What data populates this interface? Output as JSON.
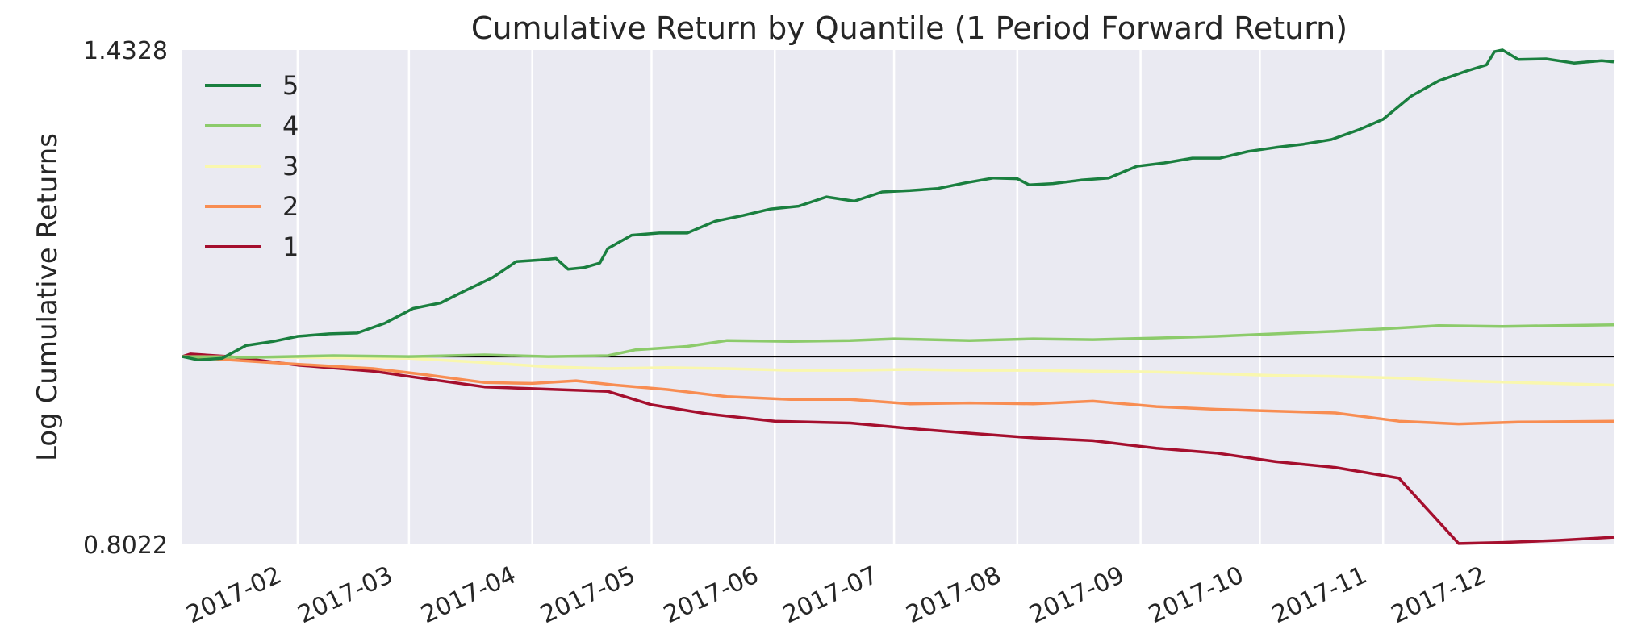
{
  "chart_data": {
    "type": "line",
    "title": "Cumulative Return by Quantile (1 Period Forward Return)",
    "ylabel": "Log Cumulative Returns",
    "xlabel": "",
    "scale_y": "log",
    "ylim": [
      0.8022,
      1.4328
    ],
    "y_ticks": [
      "1.4328",
      "0.8022"
    ],
    "xlim": [
      "2017-01-03",
      "2017-12-29"
    ],
    "x_ticks": [
      {
        "date": "2017-02-01",
        "label": "2017-02"
      },
      {
        "date": "2017-03-01",
        "label": "2017-03"
      },
      {
        "date": "2017-04-01",
        "label": "2017-04"
      },
      {
        "date": "2017-05-01",
        "label": "2017-05"
      },
      {
        "date": "2017-06-01",
        "label": "2017-06"
      },
      {
        "date": "2017-07-01",
        "label": "2017-07"
      },
      {
        "date": "2017-08-01",
        "label": "2017-08"
      },
      {
        "date": "2017-09-01",
        "label": "2017-09"
      },
      {
        "date": "2017-10-01",
        "label": "2017-10"
      },
      {
        "date": "2017-11-01",
        "label": "2017-11"
      },
      {
        "date": "2017-12-01",
        "label": "2017-12"
      }
    ],
    "baseline": 1.0,
    "grid": true,
    "legend_position": "top-left",
    "background": "#EAEAF2",
    "series": [
      {
        "name": "5",
        "color": "#1A7F3F",
        "points": [
          [
            "2017-01-03",
            1.0
          ],
          [
            "2017-01-07",
            0.996
          ],
          [
            "2017-01-13",
            0.998
          ],
          [
            "2017-01-19",
            1.013
          ],
          [
            "2017-01-26",
            1.018
          ],
          [
            "2017-02-01",
            1.024
          ],
          [
            "2017-02-09",
            1.027
          ],
          [
            "2017-02-16",
            1.028
          ],
          [
            "2017-02-23",
            1.04
          ],
          [
            "2017-03-02",
            1.058
          ],
          [
            "2017-03-09",
            1.065
          ],
          [
            "2017-03-15",
            1.08
          ],
          [
            "2017-03-22",
            1.097
          ],
          [
            "2017-03-28",
            1.118
          ],
          [
            "2017-04-03",
            1.12
          ],
          [
            "2017-04-07",
            1.122
          ],
          [
            "2017-04-10",
            1.108
          ],
          [
            "2017-04-14",
            1.11
          ],
          [
            "2017-04-18",
            1.116
          ],
          [
            "2017-04-20",
            1.135
          ],
          [
            "2017-04-26",
            1.153
          ],
          [
            "2017-05-03",
            1.156
          ],
          [
            "2017-05-10",
            1.156
          ],
          [
            "2017-05-17",
            1.172
          ],
          [
            "2017-05-24",
            1.18
          ],
          [
            "2017-05-31",
            1.189
          ],
          [
            "2017-06-07",
            1.193
          ],
          [
            "2017-06-14",
            1.206
          ],
          [
            "2017-06-21",
            1.2
          ],
          [
            "2017-06-28",
            1.213
          ],
          [
            "2017-07-05",
            1.215
          ],
          [
            "2017-07-12",
            1.218
          ],
          [
            "2017-07-19",
            1.226
          ],
          [
            "2017-07-26",
            1.233
          ],
          [
            "2017-08-01",
            1.232
          ],
          [
            "2017-08-04",
            1.223
          ],
          [
            "2017-08-10",
            1.225
          ],
          [
            "2017-08-17",
            1.23
          ],
          [
            "2017-08-24",
            1.233
          ],
          [
            "2017-08-31",
            1.25
          ],
          [
            "2017-09-07",
            1.255
          ],
          [
            "2017-09-14",
            1.262
          ],
          [
            "2017-09-21",
            1.262
          ],
          [
            "2017-09-28",
            1.272
          ],
          [
            "2017-10-05",
            1.278
          ],
          [
            "2017-10-12",
            1.283
          ],
          [
            "2017-10-19",
            1.29
          ],
          [
            "2017-10-26",
            1.305
          ],
          [
            "2017-11-01",
            1.321
          ],
          [
            "2017-11-08",
            1.357
          ],
          [
            "2017-11-15",
            1.382
          ],
          [
            "2017-11-22",
            1.398
          ],
          [
            "2017-11-27",
            1.408
          ],
          [
            "2017-11-29",
            1.43
          ],
          [
            "2017-12-01",
            1.433
          ],
          [
            "2017-12-05",
            1.417
          ],
          [
            "2017-12-12",
            1.418
          ],
          [
            "2017-12-19",
            1.411
          ],
          [
            "2017-12-26",
            1.415
          ],
          [
            "2017-12-29",
            1.413
          ]
        ]
      },
      {
        "name": "4",
        "color": "#8CCB6B",
        "points": [
          [
            "2017-01-03",
            1.0
          ],
          [
            "2017-01-20",
            0.999
          ],
          [
            "2017-02-10",
            1.001
          ],
          [
            "2017-03-01",
            1.0
          ],
          [
            "2017-03-20",
            1.002
          ],
          [
            "2017-04-05",
            1.0
          ],
          [
            "2017-04-20",
            1.001
          ],
          [
            "2017-04-27",
            1.008
          ],
          [
            "2017-05-10",
            1.012
          ],
          [
            "2017-05-20",
            1.019
          ],
          [
            "2017-06-05",
            1.018
          ],
          [
            "2017-06-20",
            1.019
          ],
          [
            "2017-07-01",
            1.021
          ],
          [
            "2017-07-20",
            1.019
          ],
          [
            "2017-08-05",
            1.021
          ],
          [
            "2017-08-20",
            1.02
          ],
          [
            "2017-09-05",
            1.022
          ],
          [
            "2017-09-20",
            1.024
          ],
          [
            "2017-10-05",
            1.027
          ],
          [
            "2017-10-20",
            1.03
          ],
          [
            "2017-11-01",
            1.033
          ],
          [
            "2017-11-15",
            1.037
          ],
          [
            "2017-12-01",
            1.036
          ],
          [
            "2017-12-15",
            1.037
          ],
          [
            "2017-12-29",
            1.038
          ]
        ]
      },
      {
        "name": "3",
        "color": "#F9F7AE",
        "points": [
          [
            "2017-01-03",
            1.0
          ],
          [
            "2017-02-01",
            0.999
          ],
          [
            "2017-03-01",
            0.998
          ],
          [
            "2017-03-20",
            0.993
          ],
          [
            "2017-04-05",
            0.988
          ],
          [
            "2017-04-20",
            0.986
          ],
          [
            "2017-05-05",
            0.987
          ],
          [
            "2017-05-20",
            0.986
          ],
          [
            "2017-06-05",
            0.984
          ],
          [
            "2017-06-20",
            0.984
          ],
          [
            "2017-07-05",
            0.985
          ],
          [
            "2017-07-20",
            0.984
          ],
          [
            "2017-08-05",
            0.984
          ],
          [
            "2017-08-20",
            0.983
          ],
          [
            "2017-09-05",
            0.982
          ],
          [
            "2017-09-20",
            0.98
          ],
          [
            "2017-10-05",
            0.978
          ],
          [
            "2017-10-20",
            0.977
          ],
          [
            "2017-11-05",
            0.975
          ],
          [
            "2017-11-20",
            0.972
          ],
          [
            "2017-12-05",
            0.97
          ],
          [
            "2017-12-29",
            0.967
          ]
        ]
      },
      {
        "name": "2",
        "color": "#F88D52",
        "points": [
          [
            "2017-01-03",
            1.0
          ],
          [
            "2017-01-15",
            0.996
          ],
          [
            "2017-02-01",
            0.991
          ],
          [
            "2017-02-20",
            0.986
          ],
          [
            "2017-03-05",
            0.979
          ],
          [
            "2017-03-20",
            0.97
          ],
          [
            "2017-04-01",
            0.969
          ],
          [
            "2017-04-12",
            0.972
          ],
          [
            "2017-04-22",
            0.967
          ],
          [
            "2017-05-05",
            0.962
          ],
          [
            "2017-05-20",
            0.954
          ],
          [
            "2017-06-05",
            0.951
          ],
          [
            "2017-06-20",
            0.951
          ],
          [
            "2017-07-05",
            0.946
          ],
          [
            "2017-07-20",
            0.947
          ],
          [
            "2017-08-05",
            0.946
          ],
          [
            "2017-08-20",
            0.949
          ],
          [
            "2017-09-05",
            0.943
          ],
          [
            "2017-09-20",
            0.94
          ],
          [
            "2017-10-05",
            0.938
          ],
          [
            "2017-10-20",
            0.936
          ],
          [
            "2017-11-05",
            0.927
          ],
          [
            "2017-11-20",
            0.924
          ],
          [
            "2017-12-05",
            0.926
          ],
          [
            "2017-12-29",
            0.927
          ]
        ]
      },
      {
        "name": "1",
        "color": "#A50F2E",
        "points": [
          [
            "2017-01-03",
            1.0
          ],
          [
            "2017-01-05",
            1.003
          ],
          [
            "2017-01-15",
            1.0
          ],
          [
            "2017-02-01",
            0.99
          ],
          [
            "2017-02-20",
            0.983
          ],
          [
            "2017-03-01",
            0.977
          ],
          [
            "2017-03-20",
            0.965
          ],
          [
            "2017-04-01",
            0.963
          ],
          [
            "2017-04-20",
            0.96
          ],
          [
            "2017-05-01",
            0.945
          ],
          [
            "2017-05-15",
            0.935
          ],
          [
            "2017-06-01",
            0.927
          ],
          [
            "2017-06-20",
            0.925
          ],
          [
            "2017-07-05",
            0.919
          ],
          [
            "2017-07-20",
            0.914
          ],
          [
            "2017-08-05",
            0.909
          ],
          [
            "2017-08-20",
            0.906
          ],
          [
            "2017-09-05",
            0.898
          ],
          [
            "2017-09-20",
            0.893
          ],
          [
            "2017-10-05",
            0.884
          ],
          [
            "2017-10-20",
            0.878
          ],
          [
            "2017-11-05",
            0.867
          ],
          [
            "2017-11-20",
            0.803
          ],
          [
            "2017-12-01",
            0.804
          ],
          [
            "2017-12-15",
            0.806
          ],
          [
            "2017-12-29",
            0.809
          ]
        ]
      }
    ]
  }
}
